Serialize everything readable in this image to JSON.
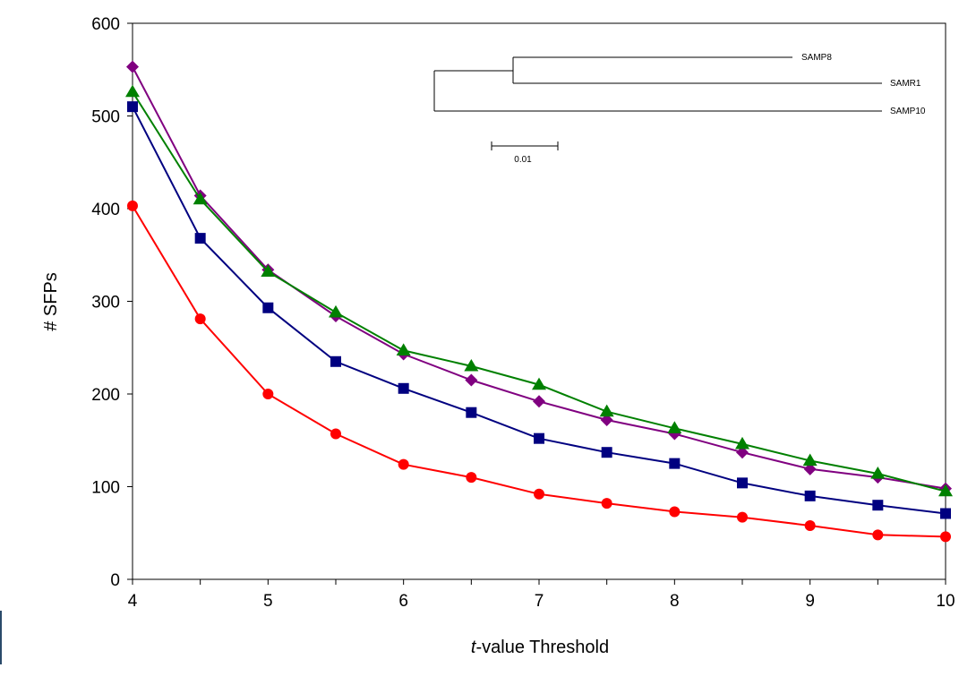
{
  "chart_data": {
    "type": "line",
    "title": "",
    "xlabel_italic": "t",
    "xlabel_rest": "-value Threshold",
    "ylabel": "# SFPs",
    "xlim": [
      4,
      10
    ],
    "ylim": [
      0,
      600
    ],
    "x_ticks": [
      "4",
      "5",
      "6",
      "7",
      "8",
      "9",
      "10"
    ],
    "y_ticks": [
      "0",
      "100",
      "200",
      "300",
      "400",
      "500",
      "600"
    ],
    "x": [
      4,
      4.5,
      5,
      5.5,
      6,
      6.5,
      7,
      7.5,
      8,
      8.5,
      9,
      9.5,
      10
    ],
    "grid": false,
    "legend": "none",
    "series": [
      {
        "marker": "diamond",
        "color": "#800080",
        "values": [
          553,
          414,
          334,
          284,
          243,
          215,
          192,
          172,
          157,
          137,
          119,
          110,
          98
        ]
      },
      {
        "marker": "triangle",
        "color": "#008000",
        "values": [
          526,
          410,
          332,
          288,
          247,
          230,
          210,
          181,
          163,
          146,
          128,
          114,
          95
        ]
      },
      {
        "marker": "square",
        "color": "#000080",
        "values": [
          510,
          368,
          293,
          235,
          206,
          180,
          152,
          137,
          125,
          104,
          90,
          80,
          71
        ]
      },
      {
        "marker": "circle",
        "color": "#ff0000",
        "values": [
          403,
          281,
          200,
          157,
          124,
          110,
          92,
          82,
          73,
          67,
          58,
          48,
          46
        ]
      }
    ],
    "inset_tree": {
      "labels": [
        "SAMP8",
        "SAMR1",
        "SAMP10"
      ],
      "scale_label": "0.01"
    }
  }
}
